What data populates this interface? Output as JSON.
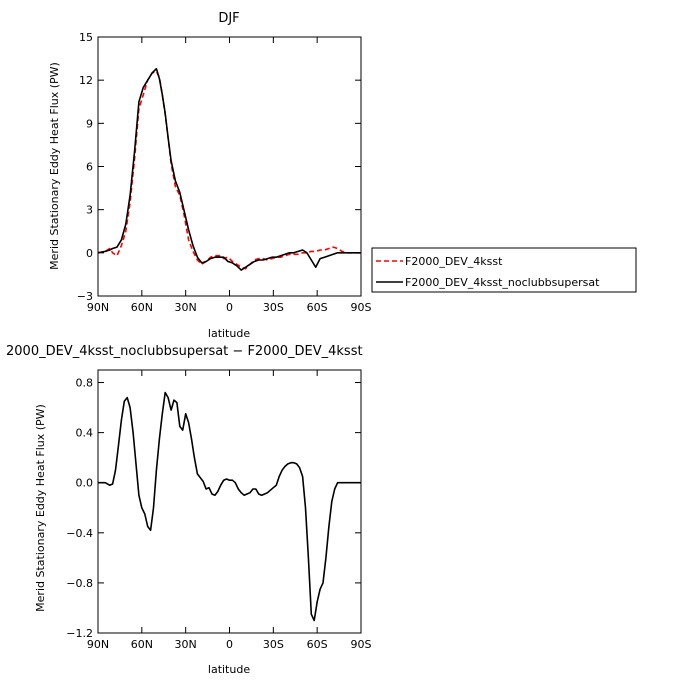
{
  "chart_data": [
    {
      "type": "line",
      "title": "DJF",
      "xlabel": "latitude",
      "ylabel": "Merid Stationary Eddy Heat Flux (PW)",
      "xlim": [
        90,
        -90
      ],
      "ylim": [
        -3,
        15
      ],
      "xticks": [
        90,
        60,
        30,
        0,
        -30,
        -60,
        -90
      ],
      "xtick_labels": [
        "90N",
        "60N",
        "30N",
        "0",
        "30S",
        "60S",
        "90S"
      ],
      "yticks": [
        -3,
        0,
        3,
        6,
        9,
        12,
        15
      ],
      "ytick_labels": [
        "−3",
        "0",
        "3",
        "6",
        "9",
        "12",
        "15"
      ],
      "legend_position": "right, outside plot",
      "series": [
        {
          "name": "F2000_DEV_4ksst",
          "color": "#ff0000",
          "dash": "dashed",
          "x": [
            90,
            85,
            82,
            80,
            77,
            74,
            71,
            68,
            65,
            62,
            59,
            56,
            53,
            50,
            48,
            46,
            44,
            42,
            40,
            37,
            34,
            31,
            28,
            25,
            22,
            19,
            16,
            13,
            10,
            7,
            4,
            1,
            -2,
            -5,
            -8,
            -11,
            -14,
            -17,
            -20,
            -23,
            -26,
            -29,
            -32,
            -35,
            -38,
            -41,
            -44,
            -47,
            -50,
            -53,
            -56,
            -59,
            -62,
            -65,
            -68,
            -71,
            -74,
            -77,
            -80,
            -83,
            -86,
            -90
          ],
          "y": [
            0.0,
            0.1,
            0.3,
            0.0,
            -0.2,
            0.5,
            1.5,
            3.5,
            6.5,
            10.0,
            11.0,
            12.0,
            12.5,
            12.6,
            12.2,
            11.0,
            9.6,
            8.0,
            6.2,
            4.6,
            4.0,
            2.6,
            0.9,
            0.1,
            -0.5,
            -0.8,
            -0.6,
            -0.3,
            -0.2,
            -0.2,
            -0.4,
            -0.3,
            -0.6,
            -0.8,
            -1.0,
            -1.1,
            -0.8,
            -0.5,
            -0.4,
            -0.4,
            -0.5,
            -0.4,
            -0.3,
            -0.3,
            -0.2,
            -0.1,
            -0.1,
            -0.1,
            0.0,
            0.0,
            0.1,
            0.1,
            0.2,
            0.2,
            0.3,
            0.4,
            0.3,
            0.1,
            0.0,
            0.0,
            0.0,
            0.0
          ]
        },
        {
          "name": "F2000_DEV_4ksst_noclubbsupersat",
          "color": "#000000",
          "dash": "solid",
          "x": [
            90,
            85,
            82,
            80,
            77,
            74,
            71,
            68,
            65,
            62,
            59,
            56,
            53,
            50,
            48,
            46,
            44,
            42,
            40,
            37,
            34,
            31,
            28,
            25,
            22,
            19,
            16,
            13,
            10,
            7,
            4,
            1,
            -2,
            -5,
            -8,
            -11,
            -14,
            -17,
            -20,
            -23,
            -26,
            -29,
            -32,
            -35,
            -38,
            -41,
            -44,
            -47,
            -50,
            -53,
            -56,
            -59,
            -62,
            -65,
            -68,
            -71,
            -74,
            -77,
            -80,
            -83,
            -86,
            -90
          ],
          "y": [
            0.0,
            0.1,
            0.2,
            0.3,
            0.4,
            0.9,
            2.0,
            4.0,
            7.0,
            10.5,
            11.5,
            12.0,
            12.5,
            12.8,
            12.1,
            11.0,
            9.7,
            8.0,
            6.4,
            5.0,
            4.2,
            2.9,
            1.6,
            0.5,
            -0.3,
            -0.7,
            -0.6,
            -0.4,
            -0.3,
            -0.3,
            -0.3,
            -0.6,
            -0.7,
            -0.9,
            -1.2,
            -1.0,
            -0.8,
            -0.6,
            -0.5,
            -0.5,
            -0.4,
            -0.3,
            -0.3,
            -0.2,
            -0.1,
            0.0,
            0.0,
            0.1,
            0.2,
            0.0,
            -0.5,
            -1.0,
            -0.4,
            -0.3,
            -0.2,
            -0.1,
            0.0,
            0.0,
            0.0,
            0.0,
            0.0,
            0.0
          ]
        }
      ]
    },
    {
      "type": "line",
      "title": "2000_DEV_4ksst_noclubbsupersat − F2000_DEV_4ksst",
      "xlabel": "latitude",
      "ylabel": "Merid Stationary Eddy Heat Flux (PW)",
      "xlim": [
        90,
        -90
      ],
      "ylim": [
        -1.2,
        0.9
      ],
      "xticks": [
        90,
        60,
        30,
        0,
        -30,
        -60,
        -90
      ],
      "xtick_labels": [
        "90N",
        "60N",
        "30N",
        "0",
        "30S",
        "60S",
        "90S"
      ],
      "yticks": [
        -1.2,
        -0.8,
        -0.4,
        0.0,
        0.4,
        0.8
      ],
      "ytick_labels": [
        "−1.2",
        "−0.8",
        "−0.4",
        "0.0",
        "0.4",
        "0.8"
      ],
      "series": [
        {
          "color": "#000000",
          "dash": "solid",
          "x": [
            90,
            85,
            82,
            80,
            78,
            76,
            74,
            72,
            70,
            68,
            66,
            64,
            62,
            60,
            58,
            56,
            54,
            52,
            50,
            48,
            46,
            44,
            42,
            40,
            38,
            36,
            34,
            32,
            30,
            28,
            26,
            24,
            22,
            20,
            18,
            16,
            14,
            12,
            10,
            8,
            6,
            4,
            2,
            0,
            -2,
            -4,
            -6,
            -8,
            -10,
            -12,
            -14,
            -16,
            -18,
            -20,
            -22,
            -24,
            -26,
            -28,
            -30,
            -32,
            -34,
            -36,
            -38,
            -40,
            -42,
            -44,
            -46,
            -48,
            -50,
            -52,
            -54,
            -56,
            -58,
            -60,
            -62,
            -64,
            -66,
            -68,
            -70,
            -72,
            -74,
            -76,
            -78,
            -80,
            -82,
            -84,
            -86,
            -88,
            -90
          ],
          "y": [
            0.0,
            0.0,
            -0.02,
            -0.01,
            0.1,
            0.3,
            0.5,
            0.65,
            0.68,
            0.6,
            0.4,
            0.15,
            -0.1,
            -0.2,
            -0.25,
            -0.35,
            -0.38,
            -0.2,
            0.1,
            0.35,
            0.55,
            0.72,
            0.68,
            0.58,
            0.66,
            0.64,
            0.45,
            0.42,
            0.55,
            0.48,
            0.35,
            0.2,
            0.07,
            0.04,
            0.01,
            -0.05,
            -0.04,
            -0.09,
            -0.1,
            -0.07,
            -0.02,
            0.02,
            0.03,
            0.02,
            0.02,
            0.0,
            -0.05,
            -0.08,
            -0.1,
            -0.09,
            -0.08,
            -0.05,
            -0.05,
            -0.09,
            -0.1,
            -0.09,
            -0.08,
            -0.06,
            -0.04,
            -0.02,
            0.05,
            0.1,
            0.13,
            0.15,
            0.16,
            0.16,
            0.15,
            0.12,
            0.05,
            -0.2,
            -0.6,
            -1.05,
            -1.1,
            -0.95,
            -0.85,
            -0.8,
            -0.6,
            -0.35,
            -0.15,
            -0.05,
            0.0,
            0.0,
            0.0,
            0.0,
            0.0,
            0.0,
            0.0,
            0.0,
            0.0
          ]
        }
      ]
    }
  ]
}
